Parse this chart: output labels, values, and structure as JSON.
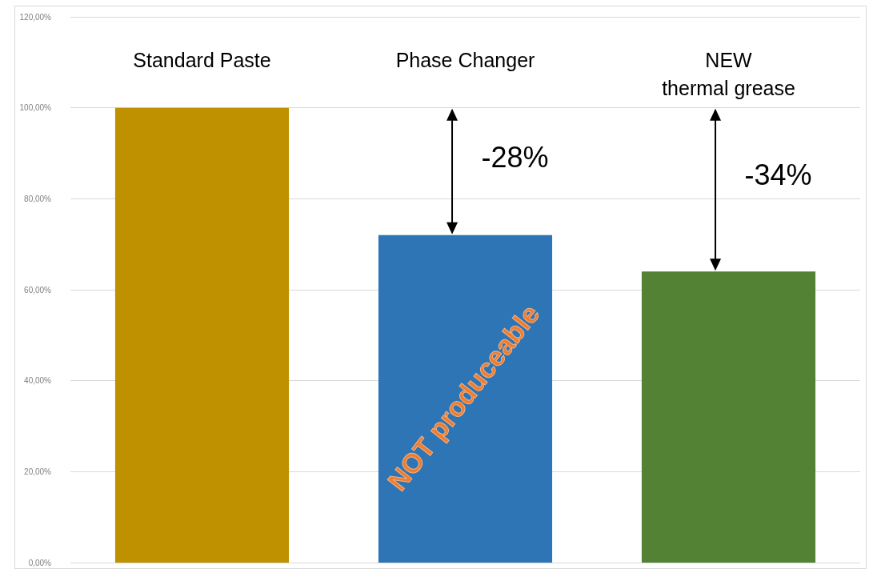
{
  "chart_data": {
    "type": "bar",
    "categories": [
      "Standard Paste",
      "Phase Changer",
      "NEW\nthermal grease"
    ],
    "values": [
      100,
      72,
      64
    ],
    "colors": [
      "#bf9000",
      "#2e75b6",
      "#548235"
    ],
    "ylim": [
      0,
      120
    ],
    "yticks": [
      {
        "value": 0,
        "label": "0,00%"
      },
      {
        "value": 20,
        "label": "20,00%"
      },
      {
        "value": 40,
        "label": "40,00%"
      },
      {
        "value": 60,
        "label": "60,00%"
      },
      {
        "value": 80,
        "label": "80,00%"
      },
      {
        "value": 100,
        "label": "100,00%"
      },
      {
        "value": 120,
        "label": "120,00%"
      }
    ],
    "grid": "y",
    "annotations": [
      "-28%",
      "-34%",
      "NOT produceable"
    ]
  }
}
